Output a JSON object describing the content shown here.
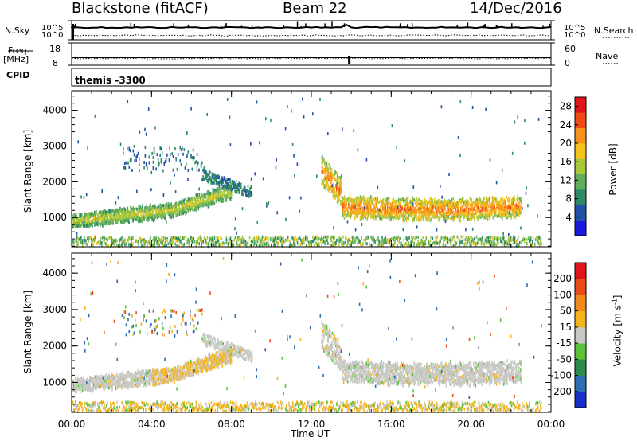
{
  "header": {
    "station": "Blackstone (fitACF)",
    "beam": "Beam 22",
    "date": "14/Dec/2016"
  },
  "strips": {
    "nsky_label": "N.Sky",
    "nsky_ticks": [
      "10^5",
      "10^0"
    ],
    "nsearch_label": "N.Search",
    "nsearch_ticks": [
      "10^5",
      "10^0"
    ],
    "freq_label": "Freq.",
    "freq_unit": "[MHz]",
    "freq_ticks": [
      "18",
      "8"
    ],
    "nave_label": "Nave",
    "nave_ticks": [
      "60",
      "0"
    ],
    "cpid_label": "CPID",
    "cpid_value": "themis -3300"
  },
  "chart_data": [
    {
      "type": "heatmap",
      "title": "",
      "ylabel": "Slant Range [km]",
      "xlabel": "",
      "x_ticks": [
        "00:00",
        "04:00",
        "08:00",
        "12:00",
        "16:00",
        "20:00",
        "00:00"
      ],
      "xlim_hours": [
        0,
        24
      ],
      "y_ticks": [
        1000,
        2000,
        3000,
        4000
      ],
      "ylim_km": [
        180,
        4550
      ],
      "colorbar": {
        "label": "Power [dB]",
        "ticks": [
          4,
          8,
          12,
          16,
          20,
          24,
          28
        ],
        "range": [
          0,
          30
        ],
        "colors": [
          "#1a1adc",
          "#2252a8",
          "#2e8a66",
          "#5fae5a",
          "#a8c83c",
          "#f6c21c",
          "#f8921a",
          "#ee4a18",
          "#e0141a"
        ]
      },
      "features": [
        {
          "region": "E-region band",
          "x_hours": [
            0,
            23.5
          ],
          "range_km": [
            200,
            450
          ],
          "dB": 10
        },
        {
          "region": "morning ionospheric band",
          "x_hours": [
            0,
            8
          ],
          "range_km": [
            750,
            1500
          ],
          "dB": 14
        },
        {
          "region": "morning high-range scatter",
          "x_hours": [
            2.5,
            9
          ],
          "range_km": [
            1700,
            3000
          ],
          "dB": 6
        },
        {
          "region": "afternoon band",
          "x_hours": [
            12.5,
            22.5
          ],
          "range_km": [
            800,
            2500
          ],
          "dB": 16
        }
      ]
    },
    {
      "type": "heatmap",
      "title": "",
      "ylabel": "Slant Range [km]",
      "xlabel": "Time UT",
      "x_ticks": [
        "00:00",
        "04:00",
        "08:00",
        "12:00",
        "16:00",
        "20:00",
        "00:00"
      ],
      "xlim_hours": [
        0,
        24
      ],
      "y_ticks": [
        1000,
        2000,
        3000,
        4000
      ],
      "ylim_km": [
        180,
        4550
      ],
      "colorbar": {
        "label": "Velocity [m s-1]",
        "label_main": "Velocity [m s",
        "label_exp": "-1",
        "label_end": "]",
        "ticks": [
          200,
          100,
          50,
          15,
          -15,
          -50,
          -100,
          -200
        ],
        "colors": [
          "#1a2ec8",
          "#2e6cb4",
          "#2e8a4a",
          "#5cc23c",
          "#c8c8c4",
          "#f6b41c",
          "#f08a1a",
          "#e84a18",
          "#e0141a"
        ]
      },
      "features": [
        {
          "region": "E-region band",
          "x_hours": [
            0,
            23.5
          ],
          "range_km": [
            200,
            450
          ],
          "velocity": -50
        },
        {
          "region": "morning band",
          "x_hours": [
            0,
            8
          ],
          "range_km": [
            750,
            1500
          ],
          "velocity": -50
        },
        {
          "region": "afternoon band",
          "x_hours": [
            12.5,
            22.5
          ],
          "range_km": [
            800,
            2500
          ],
          "velocity": 0
        }
      ]
    }
  ]
}
